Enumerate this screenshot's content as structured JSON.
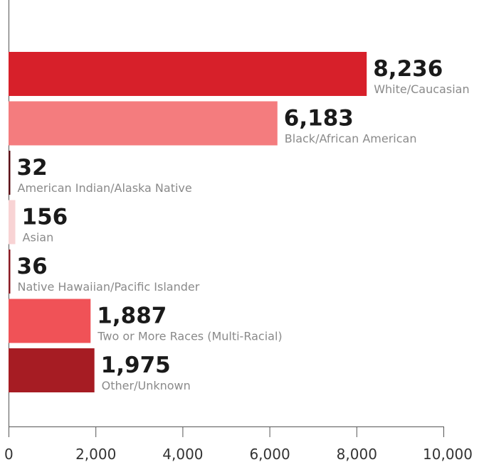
{
  "chart_data": {
    "type": "bar",
    "orientation": "horizontal",
    "title": "",
    "xlabel": "",
    "ylabel": "",
    "xlim": [
      0,
      10000
    ],
    "ticks": [
      0,
      2000,
      4000,
      6000,
      8000,
      10000
    ],
    "tick_labels": [
      "0",
      "2,000",
      "4,000",
      "6,000",
      "8,000",
      "10,000"
    ],
    "grid": false,
    "legend": "none",
    "categories": [
      "White/Caucasian",
      "Black/African American",
      "American Indian/Alaska Native",
      "Asian",
      "Native Hawaiian/Pacific Islander",
      "Two or More Races (Multi-Racial)",
      "Other/Unknown"
    ],
    "values": [
      8236,
      6183,
      32,
      156,
      36,
      1887,
      1975
    ],
    "value_labels": [
      "8,236",
      "6,183",
      "32",
      "156",
      "36",
      "1,887",
      "1,975"
    ],
    "colors": [
      "#d7202a",
      "#f47c7e",
      "#5a0f16",
      "#f8d3d4",
      "#8a1a22",
      "#f05257",
      "#a61c23"
    ]
  }
}
